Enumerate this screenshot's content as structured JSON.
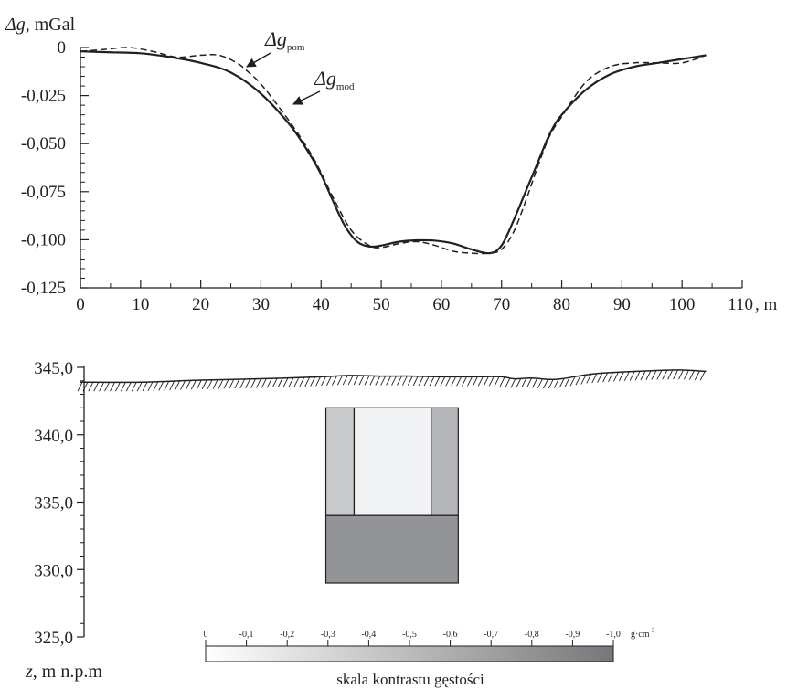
{
  "chart_data": [
    {
      "type": "line",
      "ylabel_symbol": "Δg",
      "ylabel_unit": ", mGal",
      "xlabel_unit": ", m",
      "x_ticks": [
        "0",
        "10",
        "20",
        "30",
        "40",
        "50",
        "60",
        "70",
        "80",
        "90",
        "100",
        "110"
      ],
      "y_ticks": [
        "0",
        "-0,025",
        "-0,050",
        "-0,075",
        "-0,100",
        "-0,125"
      ],
      "xlim": [
        0,
        110
      ],
      "ylim": [
        -0.125,
        0
      ],
      "series": [
        {
          "name_symbol": "Δg",
          "name_sub": "mod",
          "style": "solid",
          "color": "#231f20",
          "x": [
            0,
            5,
            10,
            15,
            20,
            25,
            30,
            35,
            38,
            40,
            42,
            44,
            46,
            48,
            50,
            53,
            56,
            59,
            62,
            65,
            68,
            70,
            72,
            74,
            76,
            78,
            80,
            84,
            88,
            92,
            96,
            100,
            104
          ],
          "y": [
            -0.002,
            -0.0025,
            -0.003,
            -0.005,
            -0.008,
            -0.013,
            -0.024,
            -0.041,
            -0.055,
            -0.066,
            -0.08,
            -0.093,
            -0.101,
            -0.1035,
            -0.103,
            -0.101,
            -0.1003,
            -0.1005,
            -0.102,
            -0.105,
            -0.107,
            -0.103,
            -0.09,
            -0.075,
            -0.06,
            -0.045,
            -0.035,
            -0.022,
            -0.014,
            -0.01,
            -0.008,
            -0.006,
            -0.004
          ]
        },
        {
          "name_symbol": "Δg",
          "name_sub": "pom",
          "style": "dashed",
          "color": "#231f20",
          "x": [
            0,
            4,
            8,
            12,
            16,
            20,
            23,
            26,
            28,
            30,
            33,
            36,
            39,
            42,
            45,
            48,
            50,
            53,
            56,
            59,
            62,
            65,
            68,
            70,
            72,
            74,
            76,
            78,
            80,
            84,
            88,
            92,
            96,
            100,
            104
          ],
          "y": [
            -0.002,
            -0.001,
            0.0,
            -0.002,
            -0.005,
            -0.004,
            -0.004,
            -0.008,
            -0.013,
            -0.019,
            -0.031,
            -0.044,
            -0.059,
            -0.078,
            -0.095,
            -0.103,
            -0.104,
            -0.102,
            -0.101,
            -0.103,
            -0.106,
            -0.107,
            -0.107,
            -0.105,
            -0.096,
            -0.08,
            -0.062,
            -0.046,
            -0.036,
            -0.018,
            -0.01,
            -0.008,
            -0.008,
            -0.008,
            -0.004
          ]
        }
      ]
    },
    {
      "type": "section",
      "ylabel_symbol": "z",
      "ylabel_unit": ", m n.p.m",
      "y_ticks": [
        "345,0",
        "340,0",
        "335,0",
        "330,0",
        "325,0"
      ],
      "ylim": [
        325,
        345
      ],
      "surface": {
        "x": [
          0,
          10,
          20,
          30,
          40,
          45,
          50,
          55,
          60,
          65,
          70,
          72,
          75,
          78,
          80,
          85,
          90,
          95,
          100,
          104
        ],
        "z": [
          343.9,
          343.9,
          344.05,
          344.15,
          344.3,
          344.4,
          344.35,
          344.35,
          344.3,
          344.3,
          344.3,
          344.15,
          344.2,
          344.1,
          344.15,
          344.5,
          344.65,
          344.75,
          344.8,
          344.7
        ]
      },
      "blocks": [
        {
          "name": "left-wall",
          "x_range": [
            40.8,
            45.5
          ],
          "z_range": [
            334,
            342
          ],
          "contrast": -0.3,
          "color": "#c8c9cb"
        },
        {
          "name": "center-void",
          "x_range": [
            45.5,
            58.3
          ],
          "z_range": [
            334,
            342
          ],
          "contrast": -0.05,
          "color": "#f1f2f3"
        },
        {
          "name": "right-wall",
          "x_range": [
            58.3,
            62.8
          ],
          "z_range": [
            334,
            342
          ],
          "contrast": -0.4,
          "color": "#b6b7ba"
        },
        {
          "name": "bottom-block",
          "x_range": [
            40.8,
            62.8
          ],
          "z_range": [
            329,
            334
          ],
          "contrast": -0.75,
          "color": "#929497"
        }
      ]
    },
    {
      "type": "colorbar",
      "tick_labels": [
        "0",
        "-0,1",
        "-0,2",
        "-0,3",
        "-0,4",
        "-0,5",
        "-0,6",
        "-0,7",
        "-0,8",
        "-0,9",
        "-1,0"
      ],
      "unit": "g·cm",
      "unit_sup": "-3",
      "title": "skala kontrastu gęstości",
      "range": [
        0,
        -1.0
      ],
      "color_start": "#ffffff",
      "color_end": "#76777a"
    }
  ]
}
